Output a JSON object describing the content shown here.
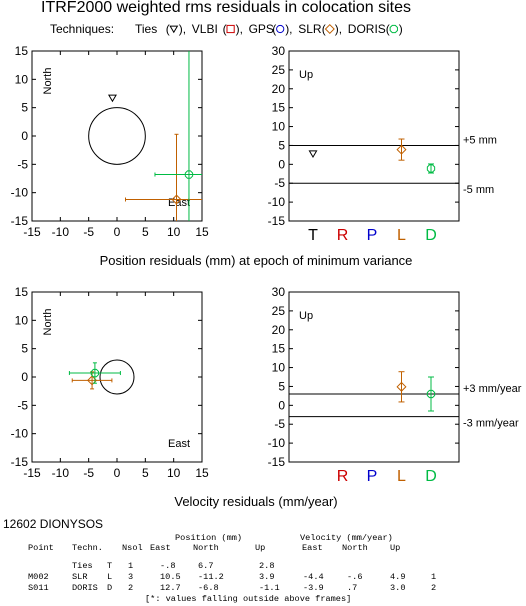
{
  "title": "ITRF2000 weighted rms residuals in colocation sites",
  "techniques": {
    "prefix": "Techniques:",
    "items": [
      {
        "label": "Ties",
        "symbol": "triangle-down",
        "color": "#000000"
      },
      {
        "label": "VLBI",
        "symbol": "square",
        "color": "#cc0000"
      },
      {
        "label": "GPS",
        "symbol": "circle",
        "color": "#0000cc"
      },
      {
        "label": "SLR",
        "symbol": "diamond",
        "color": "#c06000"
      },
      {
        "label": "DORIS",
        "symbol": "octagon",
        "color": "#00bb44"
      }
    ]
  },
  "section_titles": {
    "position": "Position residuals (mm) at epoch of minimum variance",
    "velocity": "Velocity residuals (mm/year)"
  },
  "tech_letters": [
    {
      "letter": "T",
      "color": "#000000"
    },
    {
      "letter": "R",
      "color": "#cc0000"
    },
    {
      "letter": "P",
      "color": "#0000cc"
    },
    {
      "letter": "L",
      "color": "#c06000"
    },
    {
      "letter": "D",
      "color": "#00bb44"
    }
  ],
  "chart_data": [
    {
      "id": "pos_horizontal",
      "type": "scatter",
      "x_axis_name": "East",
      "y_axis_name": "North",
      "xlim": [
        -15,
        15
      ],
      "ylim": [
        -15,
        15
      ],
      "x_ticks": [
        -15,
        -10,
        -5,
        0,
        5,
        10,
        15
      ],
      "y_ticks": [
        -15,
        -10,
        -5,
        0,
        5,
        10,
        15
      ],
      "reference_circle": {
        "cx": 0,
        "cy": 0,
        "r": 5
      },
      "points": [
        {
          "tech": "Ties",
          "x": -0.8,
          "y": 6.7,
          "ex": 0,
          "ey": 0
        },
        {
          "tech": "SLR",
          "x": 10.5,
          "y": -11.2,
          "ex": 9,
          "ey": 11.5
        },
        {
          "tech": "DORIS",
          "x": 12.7,
          "y": -6.8,
          "ex": 6,
          "ey": 22
        }
      ]
    },
    {
      "id": "pos_up",
      "type": "scatter",
      "y_axis_name": "Up",
      "ylim": [
        -15,
        30
      ],
      "y_ticks": [
        -15,
        -10,
        -5,
        0,
        5,
        10,
        15,
        20,
        25,
        30
      ],
      "thresholds": [
        {
          "value": 5,
          "label": "+5 mm"
        },
        {
          "value": -5,
          "label": "-5 mm"
        }
      ],
      "points": [
        {
          "tech": "Ties",
          "y": 2.8,
          "ey": 0
        },
        {
          "tech": "SLR",
          "y": 3.9,
          "ey": 2.8
        },
        {
          "tech": "DORIS",
          "y": -1.1,
          "ey": 1.2
        }
      ]
    },
    {
      "id": "vel_horizontal",
      "type": "scatter",
      "x_axis_name": "East",
      "y_axis_name": "North",
      "xlim": [
        -15,
        15
      ],
      "ylim": [
        -15,
        15
      ],
      "x_ticks": [
        -15,
        -10,
        -5,
        0,
        5,
        10,
        15
      ],
      "y_ticks": [
        -15,
        -10,
        -5,
        0,
        5,
        10,
        15
      ],
      "reference_circle": {
        "cx": 0,
        "cy": 0,
        "r": 3
      },
      "points": [
        {
          "tech": "SLR",
          "x": -4.4,
          "y": -0.6,
          "ex": 3.5,
          "ey": 1.5
        },
        {
          "tech": "DORIS",
          "x": -3.9,
          "y": 0.7,
          "ex": 4.5,
          "ey": 1.8
        }
      ]
    },
    {
      "id": "vel_up",
      "type": "scatter",
      "y_axis_name": "Up",
      "ylim": [
        -15,
        30
      ],
      "y_ticks": [
        -15,
        -10,
        -5,
        0,
        5,
        10,
        15,
        20,
        25,
        30
      ],
      "thresholds": [
        {
          "value": 3,
          "label": "+3 mm/year"
        },
        {
          "value": -3,
          "label": "-3 mm/year"
        }
      ],
      "points": [
        {
          "tech": "SLR",
          "y": 4.9,
          "ey": 4
        },
        {
          "tech": "DORIS",
          "y": 3.0,
          "ey": 4.5
        }
      ]
    }
  ],
  "site": {
    "name": "12602 DIONYSOS",
    "header1": {
      "position": "Position (mm)",
      "velocity": "Velocity (mm/year)"
    },
    "header2": [
      "Point",
      "Techn.",
      "Nsol",
      "East",
      "North",
      "Up",
      "East",
      "North",
      "Up"
    ],
    "rows": [
      [
        "",
        "Ties",
        "T",
        "1",
        "-.8",
        "6.7",
        "2.8",
        "",
        "",
        "",
        ""
      ],
      [
        "M002",
        "SLR",
        "L",
        "3",
        "10.5",
        "-11.2",
        "3.9",
        "-4.4",
        "-.6",
        "4.9",
        "1"
      ],
      [
        "S011",
        "DORIS",
        "D",
        "2",
        "12.7",
        "-6.8",
        "-1.1",
        "-3.9",
        ".7",
        "3.0",
        "2"
      ]
    ],
    "footnote": "[*: values falling outside above frames]"
  }
}
